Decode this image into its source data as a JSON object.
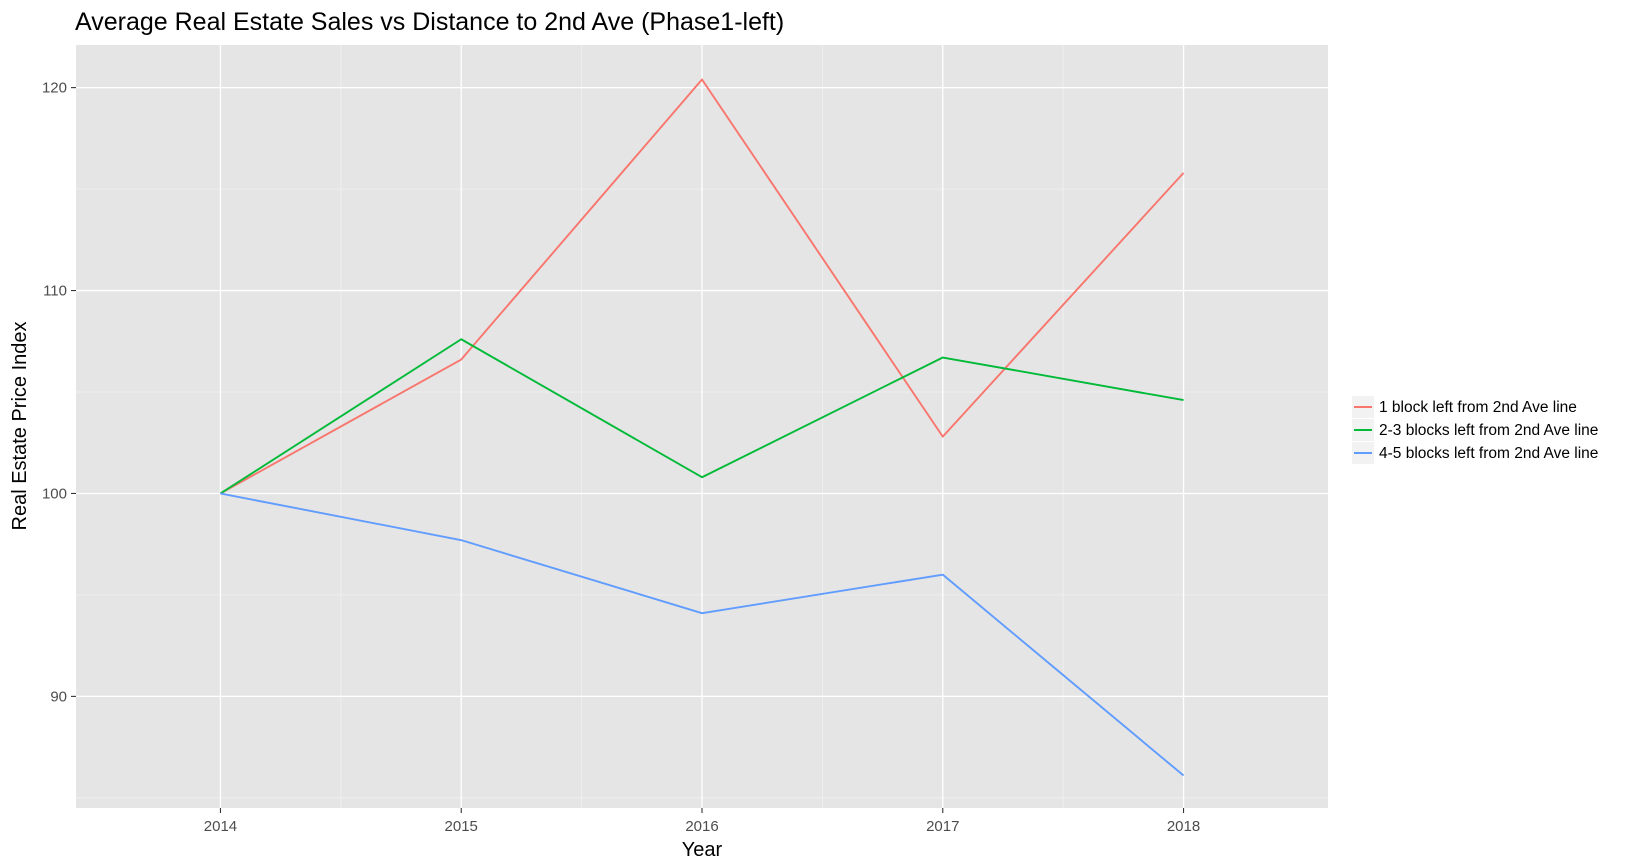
{
  "chart_data": {
    "type": "line",
    "title": "Average Real Estate Sales vs Distance to 2nd Ave (Phase1-left)",
    "xlabel": "Year",
    "ylabel": "Real Estate Price Index",
    "x": [
      2014,
      2015,
      2016,
      2017,
      2018
    ],
    "x_ticks": [
      "2014",
      "2015",
      "2016",
      "2017",
      "2018"
    ],
    "y_ticks": [
      "90",
      "100",
      "110",
      "120"
    ],
    "xlim": [
      2013.4,
      2018.6
    ],
    "ylim": [
      84.5,
      122.1
    ],
    "grid": true,
    "legend_position": "right",
    "series": [
      {
        "name": "1 block left from 2nd Ave line",
        "color": "#F8766D",
        "values": [
          100.0,
          106.6,
          120.4,
          102.8,
          115.8
        ]
      },
      {
        "name": "2-3 blocks left from 2nd Ave line",
        "color": "#00BA38",
        "values": [
          100.0,
          107.6,
          100.8,
          106.7,
          104.6
        ]
      },
      {
        "name": "4-5 blocks left from 2nd Ave line",
        "color": "#619CFF",
        "values": [
          100.0,
          97.7,
          94.1,
          96.0,
          86.1
        ]
      }
    ]
  }
}
